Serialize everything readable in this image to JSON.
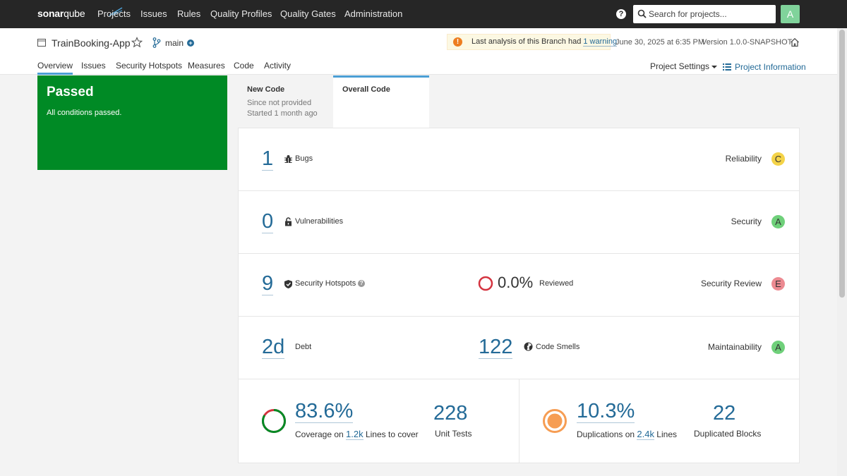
{
  "topbar": {
    "logo_sonar": "sonar",
    "logo_qube": "qube",
    "nav": [
      {
        "label": "Projects"
      },
      {
        "label": "Issues"
      },
      {
        "label": "Rules"
      },
      {
        "label": "Quality Profiles"
      },
      {
        "label": "Quality Gates"
      },
      {
        "label": "Administration"
      }
    ],
    "help": "?",
    "search_placeholder": "Search for projects...",
    "avatar": "A"
  },
  "project": {
    "name": "TrainBooking-App",
    "branch": "main",
    "warning_prefix": "Last analysis of this Branch had ",
    "warning_link": "1 warning",
    "analysis_date": "June 30, 2025 at 6:35 PM",
    "version": "Version 1.0.0-SNAPSHOT",
    "tabs": [
      {
        "label": "Overview"
      },
      {
        "label": "Issues"
      },
      {
        "label": "Security Hotspots"
      },
      {
        "label": "Measures"
      },
      {
        "label": "Code"
      },
      {
        "label": "Activity"
      }
    ],
    "settings": "Project Settings",
    "info": "Project Information"
  },
  "gate": {
    "status": "Passed",
    "message": "All conditions passed."
  },
  "code_tabs": {
    "new_title": "New Code",
    "new_line1": "Since not provided",
    "new_line2": "Started 1 month ago",
    "overall_title": "Overall Code"
  },
  "measures": {
    "bugs": {
      "value": "1",
      "label": "Bugs",
      "rating_label": "Reliability",
      "rating": "C",
      "rating_color": "#eabe06"
    },
    "vulns": {
      "value": "0",
      "label": "Vulnerabilities",
      "rating_label": "Security",
      "rating": "A",
      "rating_color": "#00aa00"
    },
    "hotspots": {
      "value": "9",
      "label": "Security Hotspots",
      "reviewed_value": "0.0%",
      "reviewed_label": "Reviewed",
      "rating_label": "Security Review",
      "rating": "E",
      "rating_color": "#d4333f"
    },
    "debt": {
      "value": "2d",
      "label": "Debt",
      "smells_value": "122",
      "smells_label": "Code Smells",
      "rating_label": "Maintainability",
      "rating": "A",
      "rating_color": "#00aa00"
    },
    "coverage": {
      "value": "83.6%",
      "fraction": 0.836,
      "prefix": "Coverage on ",
      "lines": "1.2k",
      "suffix": " Lines to cover",
      "tests_value": "228",
      "tests_label": "Unit Tests"
    },
    "duplications": {
      "value": "10.3%",
      "prefix": "Duplications on ",
      "lines": "2.4k",
      "suffix": " Lines",
      "blocks_value": "22",
      "blocks_label": "Duplicated Blocks"
    }
  }
}
